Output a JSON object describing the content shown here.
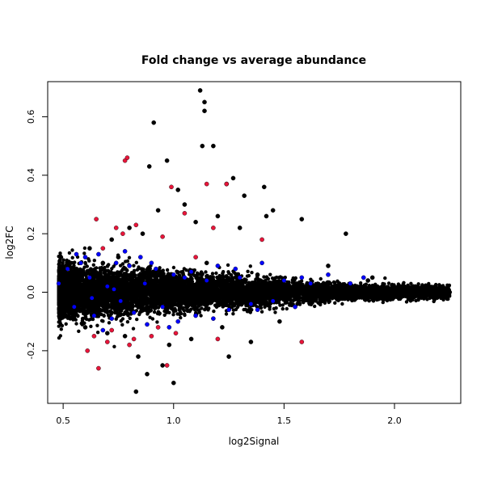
{
  "chart_data": {
    "type": "scatter",
    "title": "Fold change vs average abundance",
    "xlabel": "log2Signal",
    "ylabel": "log2FC",
    "xlim": [
      0.43,
      2.3
    ],
    "ylim": [
      -0.38,
      0.72
    ],
    "xticks": [
      0.5,
      1.0,
      1.5,
      2.0
    ],
    "xtick_labels": [
      "0.5",
      "1.0",
      "1.5",
      "2.0"
    ],
    "yticks": [
      -0.2,
      0.0,
      0.2,
      0.4,
      0.6
    ],
    "ytick_labels": [
      "-0.2",
      "0.0",
      "0.2",
      "0.4",
      "0.6"
    ],
    "grid": false,
    "legend": "none",
    "series": [
      {
        "color": "#000000",
        "x": [
          1.12,
          1.14,
          1.14,
          0.91,
          1.13,
          1.18,
          1.27,
          0.97,
          1.24,
          0.89,
          1.32,
          1.02,
          0.62,
          1.41,
          0.56,
          1.78,
          1.58,
          1.42,
          1.45,
          1.7,
          1.75,
          1.83,
          1.9,
          0.72,
          0.8,
          0.86,
          0.93,
          1.05,
          1.1,
          1.2,
          1.3,
          0.7,
          0.84,
          0.95,
          1.0,
          0.83,
          0.88,
          0.98,
          1.08,
          1.25,
          1.35,
          1.48,
          0.6,
          0.65,
          2.0,
          2.05,
          2.1,
          2.15,
          2.2,
          2.25,
          1.95,
          1.88,
          0.75,
          0.78,
          1.15,
          1.38,
          0.68,
          1.22
        ],
        "y": [
          0.69,
          0.65,
          0.62,
          0.58,
          0.5,
          0.5,
          0.39,
          0.45,
          0.37,
          0.43,
          0.33,
          0.35,
          0.15,
          0.36,
          0.08,
          0.2,
          0.25,
          0.26,
          0.28,
          0.09,
          0.03,
          0.02,
          0.05,
          0.18,
          0.22,
          0.2,
          0.28,
          0.3,
          0.24,
          0.26,
          0.22,
          -0.14,
          -0.22,
          -0.25,
          -0.31,
          -0.34,
          -0.28,
          -0.18,
          -0.16,
          -0.22,
          -0.17,
          -0.1,
          -0.12,
          -0.08,
          0.01,
          -0.01,
          0.0,
          0.02,
          0.0,
          0.0,
          -0.02,
          0.04,
          0.12,
          -0.15,
          0.1,
          0.06,
          0.1,
          -0.12
        ]
      },
      {
        "color": "#0000ff",
        "x": [
          0.48,
          0.52,
          0.55,
          0.58,
          0.6,
          0.62,
          0.64,
          0.66,
          0.7,
          0.72,
          0.74,
          0.76,
          0.8,
          0.82,
          0.85,
          0.88,
          0.92,
          0.95,
          1.0,
          1.02,
          1.05,
          1.1,
          1.15,
          1.2,
          1.25,
          1.3,
          1.35,
          1.4,
          1.45,
          1.5,
          1.55,
          1.62,
          1.7,
          1.8,
          1.86,
          0.56,
          0.68,
          0.78,
          0.9,
          0.98,
          1.08,
          1.18,
          1.28,
          1.38,
          1.58,
          0.63,
          0.73,
          0.87
        ],
        "y": [
          0.03,
          0.08,
          -0.05,
          0.1,
          0.12,
          0.05,
          -0.08,
          0.13,
          0.02,
          -0.09,
          0.1,
          -0.03,
          0.09,
          -0.07,
          0.12,
          -0.11,
          0.08,
          -0.05,
          0.06,
          -0.1,
          0.05,
          -0.08,
          0.04,
          0.09,
          -0.06,
          0.05,
          -0.04,
          0.1,
          -0.03,
          0.04,
          -0.05,
          0.03,
          0.06,
          0.03,
          0.05,
          0.13,
          -0.13,
          0.14,
          0.1,
          -0.12,
          0.07,
          -0.09,
          0.08,
          -0.06,
          0.05,
          -0.02,
          0.01,
          0.03
        ]
      },
      {
        "color": "#e8153a",
        "x": [
          0.78,
          0.79,
          0.99,
          1.15,
          1.24,
          0.65,
          0.68,
          0.74,
          0.77,
          0.83,
          0.95,
          1.05,
          1.1,
          1.18,
          1.4,
          0.61,
          0.66,
          0.7,
          0.82,
          0.93,
          0.97,
          1.01,
          1.58,
          0.64,
          0.8,
          1.2,
          0.9,
          0.72
        ],
        "y": [
          0.45,
          0.46,
          0.36,
          0.37,
          0.37,
          0.25,
          0.15,
          0.22,
          0.2,
          0.23,
          0.19,
          0.27,
          0.12,
          0.22,
          0.18,
          -0.2,
          -0.26,
          -0.17,
          -0.16,
          -0.12,
          -0.25,
          -0.14,
          -0.17,
          -0.15,
          -0.18,
          -0.16,
          -0.15,
          -0.13
        ]
      }
    ]
  }
}
